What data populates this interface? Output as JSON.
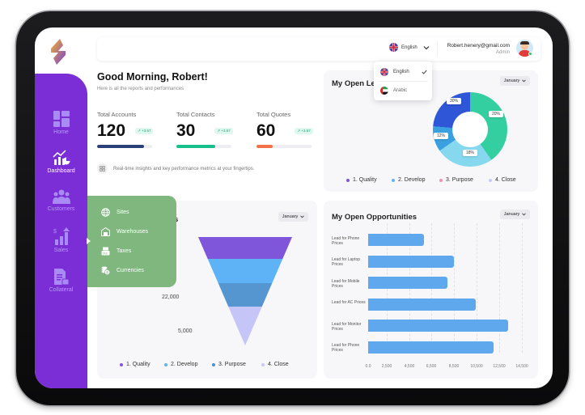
{
  "header": {
    "language": "English",
    "user_email": "Robert.henery@gmail.com",
    "user_role": "Admin"
  },
  "language_menu": {
    "options": [
      {
        "label": "English",
        "flag": "uk-flag-icon",
        "selected": true
      },
      {
        "label": "Arabic",
        "flag": "uae-flag-icon",
        "selected": false
      }
    ]
  },
  "greeting": {
    "title": "Good Morning, Robert!",
    "subtitle": "Here is all the reports and performances"
  },
  "stats": [
    {
      "label": "Total Accounts",
      "value": "120",
      "change": "+3.57",
      "progress": 85,
      "color": "#2b3f7a"
    },
    {
      "label": "Total Contacts",
      "value": "30",
      "change": "+3.57",
      "progress": 70,
      "color": "#17c08a"
    },
    {
      "label": "Total Quotes",
      "value": "60",
      "change": "+3.57",
      "progress": 30,
      "color": "#f47045"
    }
  ],
  "insight": {
    "text": "Real-time insights and key performance metrics at your fingertips."
  },
  "sidebar": {
    "items": [
      {
        "label": "Home",
        "icon": "home-grid-icon",
        "active": false
      },
      {
        "label": "Dashboard",
        "icon": "dashboard-chart-icon",
        "active": true
      },
      {
        "label": "Customers",
        "icon": "customers-icon",
        "active": false
      },
      {
        "label": "Sales",
        "icon": "sales-icon",
        "active": false
      },
      {
        "label": "Collateral",
        "icon": "collateral-icon",
        "active": false
      }
    ]
  },
  "popup_menu": {
    "items": [
      {
        "label": "Sites",
        "icon": "globe-icon"
      },
      {
        "label": "Warehouses",
        "icon": "warehouse-icon"
      },
      {
        "label": "Taxes",
        "icon": "tax-icon"
      },
      {
        "label": "Currencies",
        "icon": "coins-icon"
      }
    ]
  },
  "leads_card": {
    "title": "My Open Leads",
    "month": "January",
    "legend": [
      {
        "label": "1. Quality",
        "color": "#7f56d9"
      },
      {
        "label": "2. Develop",
        "color": "#5eb3f7"
      },
      {
        "label": "3. Purpose",
        "color": "#f48fb1"
      },
      {
        "label": "4. Close",
        "color": "#c9c9f8"
      }
    ]
  },
  "funnel_card": {
    "title_fragment": "s",
    "month": "January",
    "legend": [
      {
        "label": "1. Quality",
        "color": "#7f56d9"
      },
      {
        "label": "2. Develop",
        "color": "#5eb3f7"
      },
      {
        "label": "3. Purpose",
        "color": "#4a8fd0"
      },
      {
        "label": "4. Close",
        "color": "#c9c9f8"
      }
    ]
  },
  "opportunities_card": {
    "title": "My Open Opportunities",
    "month": "January"
  },
  "chart_data": [
    {
      "type": "pie",
      "title": "My Open Leads",
      "donut": true,
      "categories": [
        "1. Quality",
        "2. Develop",
        "3. Purpose",
        "4. Close"
      ],
      "slice_labels": [
        "30%",
        "20%",
        "12%",
        "18%"
      ],
      "colors": [
        "#2f56d6",
        "#34cfa0",
        "#3aa0e0",
        "#86d8ee"
      ],
      "legend_position": "bottom"
    },
    {
      "type": "bar",
      "subtype": "funnel",
      "categories": [
        "1. Quality",
        "2. Develop",
        "3. Purpose",
        "4. Close"
      ],
      "values": [
        null,
        null,
        22000,
        5000
      ],
      "value_labels": [
        "22,000",
        "5,000"
      ],
      "colors": [
        "#7f56d9",
        "#5eb3f7",
        "#5596d0",
        "#c5c5f7"
      ],
      "legend_position": "bottom"
    },
    {
      "type": "bar",
      "orientation": "horizontal",
      "title": "My Open Opportunities",
      "categories": [
        "Lead for Phone Prices",
        "Lead for Laptop Prices",
        "Lead for Mobile Prices",
        "Lead for AC Prices",
        "Lead for Monitor Prices",
        "Lead for Phone Prices"
      ],
      "values": [
        5800,
        8500,
        7900,
        10400,
        13300,
        12000
      ],
      "xticks": [
        "0.0",
        "2,500",
        "4,500",
        "6,500",
        "8,500",
        "10,500",
        "12,500",
        "14,500"
      ],
      "xtick_values": [
        0,
        2500,
        4500,
        6500,
        8500,
        10500,
        12500,
        14500
      ],
      "xlim": [
        0,
        14500
      ],
      "grid": true,
      "color": "#5fa8ee"
    }
  ]
}
